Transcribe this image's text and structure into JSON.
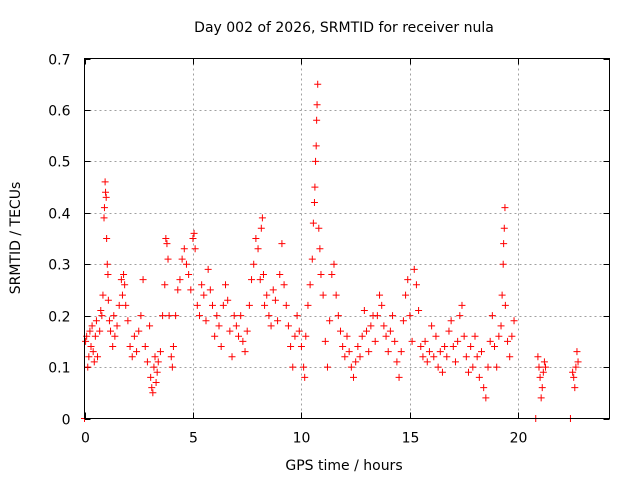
{
  "chart_data": {
    "type": "scatter",
    "title": "Day 002 of 2026, SRMTID for receiver nula",
    "xlabel": "GPS time / hours",
    "ylabel": "SRMTID / TECUs",
    "xlim": [
      0,
      24.2
    ],
    "ylim": [
      0,
      0.7
    ],
    "xticks": [
      0,
      5,
      10,
      15,
      20
    ],
    "yticks": [
      0,
      0.1,
      0.2,
      0.3,
      0.4,
      0.5,
      0.6,
      0.7
    ],
    "xtick_labels": [
      "0",
      "5",
      "10",
      "15",
      "20"
    ],
    "ytick_labels": [
      "0",
      "0.1",
      "0.2",
      "0.3",
      "0.4",
      "0.5",
      "0.6",
      "0.7"
    ],
    "grid": true,
    "marker": "plus",
    "color": "#ff0000",
    "series": [
      {
        "name": "SRMTID",
        "points": [
          [
            0.0,
            0.0
          ],
          [
            0.05,
            0.15
          ],
          [
            0.1,
            0.16
          ],
          [
            0.15,
            0.1
          ],
          [
            0.2,
            0.12
          ],
          [
            0.25,
            0.17
          ],
          [
            0.3,
            0.14
          ],
          [
            0.35,
            0.18
          ],
          [
            0.4,
            0.13
          ],
          [
            0.45,
            0.11
          ],
          [
            0.5,
            0.16
          ],
          [
            0.55,
            0.19
          ],
          [
            0.6,
            0.12
          ],
          [
            0.7,
            0.17
          ],
          [
            0.75,
            0.21
          ],
          [
            0.8,
            0.2
          ],
          [
            0.85,
            0.24
          ],
          [
            0.9,
            0.39
          ],
          [
            0.92,
            0.41
          ],
          [
            0.95,
            0.46
          ],
          [
            0.97,
            0.44
          ],
          [
            1.0,
            0.43
          ],
          [
            1.02,
            0.35
          ],
          [
            1.05,
            0.3
          ],
          [
            1.08,
            0.28
          ],
          [
            1.1,
            0.23
          ],
          [
            1.15,
            0.19
          ],
          [
            1.2,
            0.17
          ],
          [
            1.3,
            0.14
          ],
          [
            1.35,
            0.2
          ],
          [
            1.4,
            0.16
          ],
          [
            1.5,
            0.18
          ],
          [
            1.6,
            0.22
          ],
          [
            1.7,
            0.27
          ],
          [
            1.75,
            0.24
          ],
          [
            1.8,
            0.28
          ],
          [
            1.85,
            0.26
          ],
          [
            1.9,
            0.22
          ],
          [
            2.0,
            0.19
          ],
          [
            2.1,
            0.14
          ],
          [
            2.2,
            0.12
          ],
          [
            2.3,
            0.16
          ],
          [
            2.4,
            0.13
          ],
          [
            2.5,
            0.17
          ],
          [
            2.6,
            0.2
          ],
          [
            2.7,
            0.27
          ],
          [
            2.8,
            0.14
          ],
          [
            2.9,
            0.11
          ],
          [
            3.0,
            0.18
          ],
          [
            3.05,
            0.08
          ],
          [
            3.1,
            0.06
          ],
          [
            3.15,
            0.05
          ],
          [
            3.2,
            0.1
          ],
          [
            3.25,
            0.12
          ],
          [
            3.3,
            0.07
          ],
          [
            3.35,
            0.09
          ],
          [
            3.4,
            0.11
          ],
          [
            3.5,
            0.13
          ],
          [
            3.6,
            0.2
          ],
          [
            3.7,
            0.26
          ],
          [
            3.75,
            0.35
          ],
          [
            3.8,
            0.34
          ],
          [
            3.85,
            0.31
          ],
          [
            3.9,
            0.2
          ],
          [
            4.0,
            0.12
          ],
          [
            4.05,
            0.1
          ],
          [
            4.1,
            0.14
          ],
          [
            4.2,
            0.2
          ],
          [
            4.3,
            0.25
          ],
          [
            4.4,
            0.27
          ],
          [
            4.5,
            0.31
          ],
          [
            4.6,
            0.33
          ],
          [
            4.7,
            0.3
          ],
          [
            4.8,
            0.28
          ],
          [
            4.9,
            0.25
          ],
          [
            5.0,
            0.35
          ],
          [
            5.05,
            0.36
          ],
          [
            5.1,
            0.33
          ],
          [
            5.2,
            0.22
          ],
          [
            5.3,
            0.2
          ],
          [
            5.4,
            0.26
          ],
          [
            5.5,
            0.24
          ],
          [
            5.6,
            0.19
          ],
          [
            5.7,
            0.29
          ],
          [
            5.8,
            0.25
          ],
          [
            5.9,
            0.22
          ],
          [
            6.0,
            0.16
          ],
          [
            6.1,
            0.2
          ],
          [
            6.2,
            0.18
          ],
          [
            6.3,
            0.14
          ],
          [
            6.4,
            0.22
          ],
          [
            6.5,
            0.26
          ],
          [
            6.6,
            0.23
          ],
          [
            6.7,
            0.17
          ],
          [
            6.8,
            0.12
          ],
          [
            6.9,
            0.2
          ],
          [
            7.0,
            0.18
          ],
          [
            7.1,
            0.16
          ],
          [
            7.2,
            0.2
          ],
          [
            7.3,
            0.15
          ],
          [
            7.4,
            0.13
          ],
          [
            7.5,
            0.17
          ],
          [
            7.6,
            0.22
          ],
          [
            7.7,
            0.27
          ],
          [
            7.8,
            0.3
          ],
          [
            7.9,
            0.35
          ],
          [
            8.0,
            0.33
          ],
          [
            8.1,
            0.27
          ],
          [
            8.15,
            0.37
          ],
          [
            8.2,
            0.39
          ],
          [
            8.25,
            0.28
          ],
          [
            8.3,
            0.22
          ],
          [
            8.4,
            0.24
          ],
          [
            8.5,
            0.2
          ],
          [
            8.6,
            0.18
          ],
          [
            8.7,
            0.25
          ],
          [
            8.8,
            0.23
          ],
          [
            8.9,
            0.19
          ],
          [
            9.0,
            0.28
          ],
          [
            9.1,
            0.34
          ],
          [
            9.2,
            0.26
          ],
          [
            9.3,
            0.22
          ],
          [
            9.4,
            0.18
          ],
          [
            9.5,
            0.14
          ],
          [
            9.6,
            0.1
          ],
          [
            9.7,
            0.16
          ],
          [
            9.8,
            0.2
          ],
          [
            9.9,
            0.17
          ],
          [
            10.0,
            0.14
          ],
          [
            10.1,
            0.1
          ],
          [
            10.15,
            0.08
          ],
          [
            10.2,
            0.16
          ],
          [
            10.3,
            0.22
          ],
          [
            10.4,
            0.26
          ],
          [
            10.5,
            0.31
          ],
          [
            10.55,
            0.38
          ],
          [
            10.6,
            0.42
          ],
          [
            10.62,
            0.45
          ],
          [
            10.65,
            0.5
          ],
          [
            10.68,
            0.53
          ],
          [
            10.7,
            0.58
          ],
          [
            10.72,
            0.61
          ],
          [
            10.75,
            0.65
          ],
          [
            10.8,
            0.37
          ],
          [
            10.85,
            0.33
          ],
          [
            10.9,
            0.28
          ],
          [
            11.0,
            0.24
          ],
          [
            11.1,
            0.15
          ],
          [
            11.2,
            0.1
          ],
          [
            11.3,
            0.19
          ],
          [
            11.4,
            0.28
          ],
          [
            11.5,
            0.3
          ],
          [
            11.6,
            0.24
          ],
          [
            11.7,
            0.2
          ],
          [
            11.8,
            0.17
          ],
          [
            11.9,
            0.14
          ],
          [
            12.0,
            0.12
          ],
          [
            12.1,
            0.16
          ],
          [
            12.2,
            0.13
          ],
          [
            12.3,
            0.1
          ],
          [
            12.4,
            0.08
          ],
          [
            12.5,
            0.11
          ],
          [
            12.6,
            0.14
          ],
          [
            12.7,
            0.12
          ],
          [
            12.8,
            0.16
          ],
          [
            12.9,
            0.21
          ],
          [
            13.0,
            0.17
          ],
          [
            13.1,
            0.13
          ],
          [
            13.2,
            0.18
          ],
          [
            13.3,
            0.2
          ],
          [
            13.4,
            0.15
          ],
          [
            13.5,
            0.2
          ],
          [
            13.6,
            0.24
          ],
          [
            13.7,
            0.22
          ],
          [
            13.8,
            0.18
          ],
          [
            13.9,
            0.16
          ],
          [
            14.0,
            0.13
          ],
          [
            14.1,
            0.17
          ],
          [
            14.2,
            0.2
          ],
          [
            14.3,
            0.15
          ],
          [
            14.4,
            0.11
          ],
          [
            14.5,
            0.08
          ],
          [
            14.6,
            0.13
          ],
          [
            14.7,
            0.19
          ],
          [
            14.8,
            0.24
          ],
          [
            14.9,
            0.27
          ],
          [
            15.0,
            0.2
          ],
          [
            15.1,
            0.15
          ],
          [
            15.2,
            0.29
          ],
          [
            15.3,
            0.26
          ],
          [
            15.4,
            0.21
          ],
          [
            15.5,
            0.14
          ],
          [
            15.6,
            0.12
          ],
          [
            15.7,
            0.15
          ],
          [
            15.8,
            0.11
          ],
          [
            15.9,
            0.13
          ],
          [
            16.0,
            0.18
          ],
          [
            16.1,
            0.12
          ],
          [
            16.2,
            0.16
          ],
          [
            16.3,
            0.1
          ],
          [
            16.4,
            0.13
          ],
          [
            16.5,
            0.09
          ],
          [
            16.6,
            0.14
          ],
          [
            16.7,
            0.12
          ],
          [
            16.8,
            0.17
          ],
          [
            16.9,
            0.19
          ],
          [
            17.0,
            0.14
          ],
          [
            17.1,
            0.11
          ],
          [
            17.2,
            0.15
          ],
          [
            17.3,
            0.2
          ],
          [
            17.4,
            0.22
          ],
          [
            17.5,
            0.16
          ],
          [
            17.6,
            0.12
          ],
          [
            17.7,
            0.09
          ],
          [
            17.8,
            0.14
          ],
          [
            17.9,
            0.1
          ],
          [
            18.0,
            0.16
          ],
          [
            18.1,
            0.12
          ],
          [
            18.2,
            0.08
          ],
          [
            18.3,
            0.13
          ],
          [
            18.4,
            0.06
          ],
          [
            18.5,
            0.04
          ],
          [
            18.6,
            0.1
          ],
          [
            18.7,
            0.15
          ],
          [
            18.8,
            0.2
          ],
          [
            18.9,
            0.14
          ],
          [
            19.0,
            0.1
          ],
          [
            19.1,
            0.16
          ],
          [
            19.2,
            0.18
          ],
          [
            19.25,
            0.24
          ],
          [
            19.3,
            0.3
          ],
          [
            19.32,
            0.34
          ],
          [
            19.35,
            0.37
          ],
          [
            19.38,
            0.41
          ],
          [
            19.4,
            0.22
          ],
          [
            19.5,
            0.15
          ],
          [
            19.6,
            0.12
          ],
          [
            19.7,
            0.16
          ],
          [
            19.8,
            0.19
          ],
          [
            20.8,
            0.0
          ],
          [
            20.9,
            0.12
          ],
          [
            20.95,
            0.1
          ],
          [
            21.0,
            0.08
          ],
          [
            21.05,
            0.04
          ],
          [
            21.1,
            0.06
          ],
          [
            21.15,
            0.09
          ],
          [
            21.2,
            0.11
          ],
          [
            21.25,
            0.1
          ],
          [
            22.4,
            0.0
          ],
          [
            22.5,
            0.09
          ],
          [
            22.55,
            0.08
          ],
          [
            22.6,
            0.06
          ],
          [
            22.65,
            0.1
          ],
          [
            22.7,
            0.13
          ],
          [
            22.75,
            0.11
          ]
        ]
      }
    ]
  }
}
